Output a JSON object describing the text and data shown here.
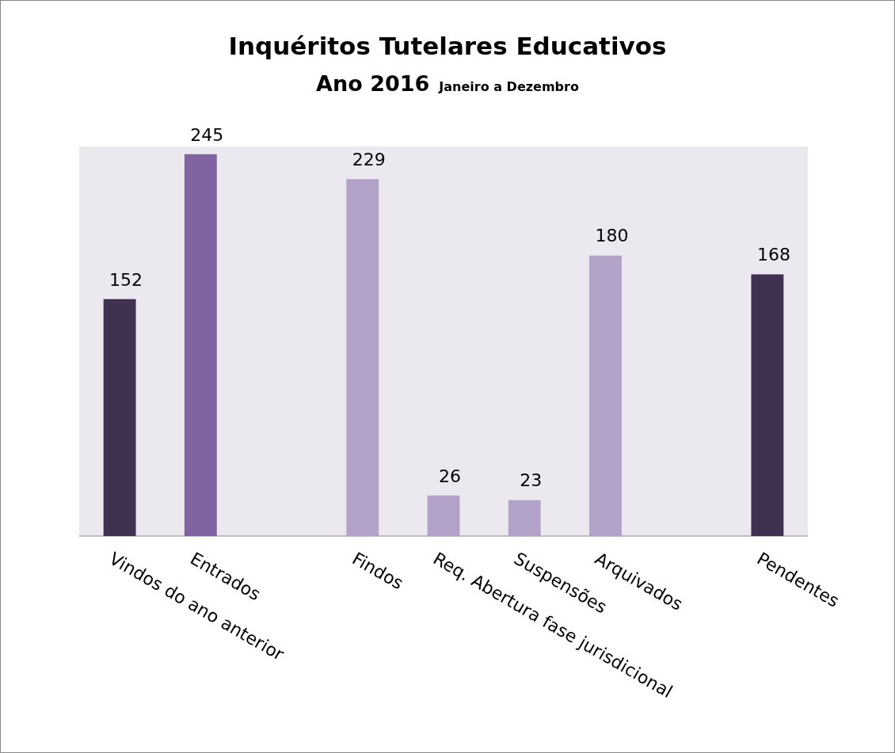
{
  "chart_data": {
    "type": "bar",
    "title": "Inquéritos Tutelares Educativos",
    "subtitle": "Ano 2016",
    "annotations": [
      "Janeiro a Dezembro"
    ],
    "categories": [
      "Vindos do ano anterior",
      "Entrados",
      null,
      "Findos",
      "Req. Abertura fase jurisdicional",
      "Suspensões",
      "Arquivados",
      null,
      "Pendentes"
    ],
    "values": [
      152,
      245,
      null,
      229,
      26,
      23,
      180,
      null,
      168
    ],
    "colors": [
      "#403151",
      "#8064a2",
      "#ffffff",
      "#b3a2c7",
      "#b3a2c7",
      "#b3a2c7",
      "#b3a2c7",
      "#ffffff",
      "#403151"
    ],
    "data_labels": true,
    "grid": false,
    "legend": false
  }
}
